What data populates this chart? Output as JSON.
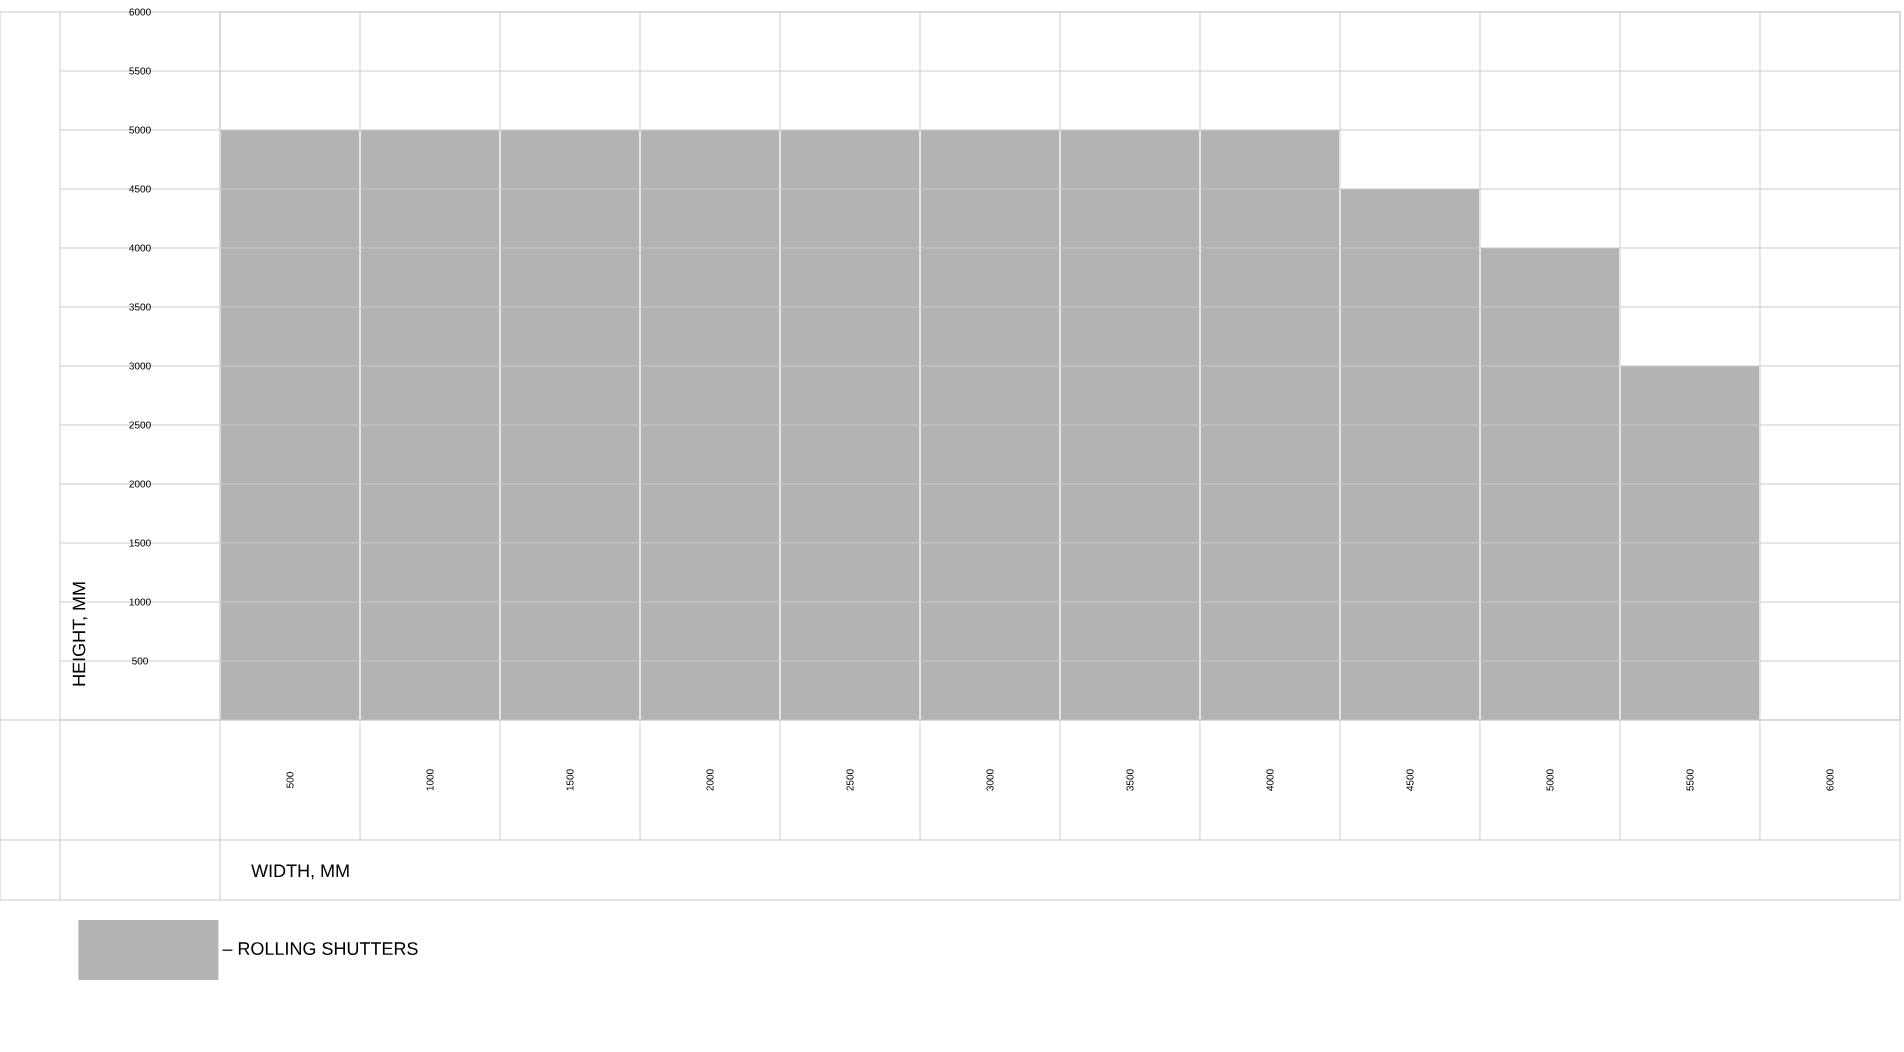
{
  "chart_data": {
    "type": "bar",
    "xlabel": "WIDTH, MM",
    "ylabel": "HEIGHT, MM",
    "categories": [
      "500",
      "1000",
      "1500",
      "2000",
      "2500",
      "3000",
      "3500",
      "4000",
      "4500",
      "5000",
      "5500",
      "6000"
    ],
    "series": [
      {
        "name": "– ROLLING SHUTTERS",
        "color": "#b3b3b3",
        "values": [
          5000,
          5000,
          5000,
          5000,
          5000,
          5000,
          5000,
          5000,
          4500,
          4000,
          3000,
          null
        ]
      }
    ],
    "ylim": [
      0,
      6000
    ],
    "yticks": [
      500,
      1000,
      1500,
      2000,
      2500,
      3000,
      3500,
      4000,
      4500,
      5000,
      5500,
      6000
    ],
    "grid": true,
    "legend": "bottom left"
  }
}
